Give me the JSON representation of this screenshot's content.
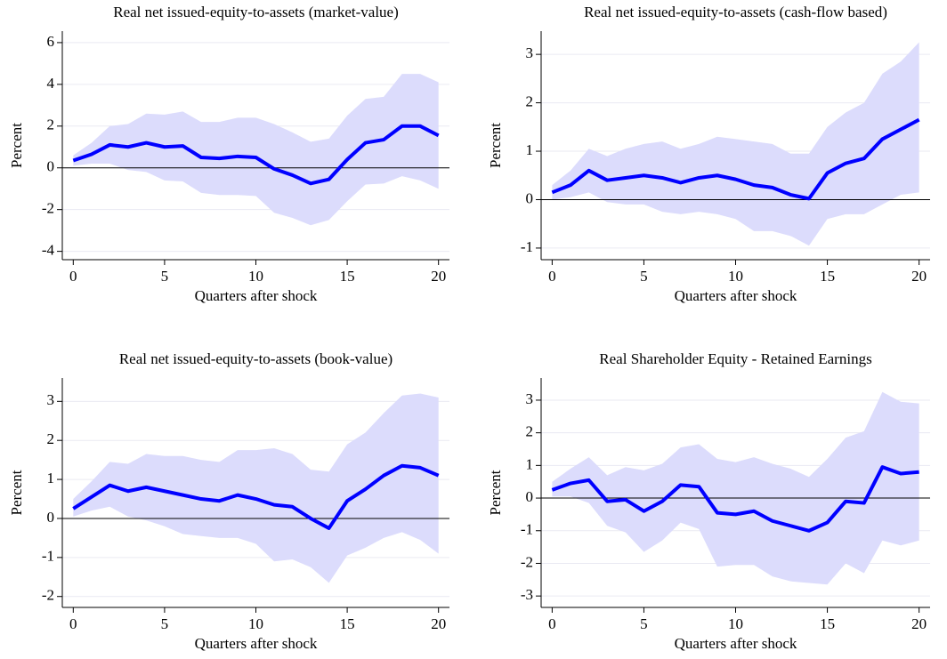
{
  "chart_data": [
    {
      "type": "line",
      "title": "Real net issued-equity-to-assets (market-value)",
      "xlabel": "Quarters after shock",
      "ylabel": "Percent",
      "x": [
        0,
        1,
        2,
        3,
        4,
        5,
        6,
        7,
        8,
        9,
        10,
        11,
        12,
        13,
        14,
        15,
        16,
        17,
        18,
        19,
        20
      ],
      "series": [
        {
          "color": "#0000ff",
          "values": [
            0.35,
            0.65,
            1.1,
            1.0,
            1.2,
            1.0,
            1.05,
            0.5,
            0.45,
            0.55,
            0.5,
            -0.05,
            -0.35,
            -0.75,
            -0.55,
            0.4,
            1.2,
            1.35,
            2.0,
            2.0,
            1.55
          ]
        }
      ],
      "band": {
        "color": "#dcdcfc",
        "upper": [
          0.6,
          1.2,
          2.0,
          2.1,
          2.6,
          2.55,
          2.7,
          2.2,
          2.2,
          2.4,
          2.4,
          2.1,
          1.7,
          1.25,
          1.4,
          2.5,
          3.3,
          3.4,
          4.5,
          4.5,
          4.1
        ],
        "lower": [
          0.1,
          0.2,
          0.2,
          -0.1,
          -0.2,
          -0.6,
          -0.65,
          -1.2,
          -1.3,
          -1.3,
          -1.35,
          -2.15,
          -2.4,
          -2.75,
          -2.5,
          -1.6,
          -0.8,
          -0.75,
          -0.4,
          -0.6,
          -1.0
        ]
      },
      "hline": 0,
      "xlim": [
        -0.6,
        20.6
      ],
      "xticks": [
        0,
        5,
        10,
        15,
        20
      ],
      "ylim": [
        -4.4,
        6.55
      ],
      "yticks": [
        -4,
        -2,
        0,
        2,
        4,
        6
      ],
      "grid": true
    },
    {
      "type": "line",
      "title": "Real net issued-equity-to-assets (cash-flow based)",
      "xlabel": "Quarters after shock",
      "ylabel": "Percent",
      "x": [
        0,
        1,
        2,
        3,
        4,
        5,
        6,
        7,
        8,
        9,
        10,
        11,
        12,
        13,
        14,
        15,
        16,
        17,
        18,
        19,
        20
      ],
      "series": [
        {
          "color": "#0000ff",
          "values": [
            0.15,
            0.3,
            0.6,
            0.4,
            0.45,
            0.5,
            0.45,
            0.35,
            0.45,
            0.5,
            0.42,
            0.3,
            0.25,
            0.1,
            0.02,
            0.55,
            0.75,
            0.85,
            1.25,
            1.45,
            1.65
          ]
        }
      ],
      "band": {
        "color": "#dcdcfc",
        "upper": [
          0.3,
          0.6,
          1.05,
          0.9,
          1.05,
          1.15,
          1.2,
          1.05,
          1.15,
          1.3,
          1.25,
          1.2,
          1.15,
          0.95,
          0.95,
          1.5,
          1.8,
          2.0,
          2.6,
          2.85,
          3.25
        ],
        "lower": [
          0.0,
          0.05,
          0.15,
          -0.05,
          -0.1,
          -0.1,
          -0.25,
          -0.3,
          -0.25,
          -0.3,
          -0.4,
          -0.65,
          -0.65,
          -0.75,
          -0.95,
          -0.4,
          -0.3,
          -0.3,
          -0.1,
          0.1,
          0.15
        ]
      },
      "hline": 0,
      "xlim": [
        -0.6,
        20.6
      ],
      "xticks": [
        0,
        5,
        10,
        15,
        20
      ],
      "ylim": [
        -1.24,
        3.48
      ],
      "yticks": [
        -1,
        0,
        1,
        2,
        3
      ],
      "grid": true
    },
    {
      "type": "line",
      "title": "Real net issued-equity-to-assets (book-value)",
      "xlabel": "Quarters after shock",
      "ylabel": "Percent",
      "x": [
        0,
        1,
        2,
        3,
        4,
        5,
        6,
        7,
        8,
        9,
        10,
        11,
        12,
        13,
        14,
        15,
        16,
        17,
        18,
        19,
        20
      ],
      "series": [
        {
          "color": "#0000ff",
          "values": [
            0.25,
            0.55,
            0.85,
            0.7,
            0.8,
            0.7,
            0.6,
            0.5,
            0.45,
            0.6,
            0.5,
            0.35,
            0.3,
            0.0,
            -0.25,
            0.45,
            0.75,
            1.1,
            1.35,
            1.3,
            1.1
          ]
        }
      ],
      "band": {
        "color": "#dcdcfc",
        "upper": [
          0.5,
          0.95,
          1.45,
          1.4,
          1.65,
          1.6,
          1.6,
          1.5,
          1.45,
          1.75,
          1.75,
          1.8,
          1.65,
          1.25,
          1.2,
          1.9,
          2.2,
          2.7,
          3.15,
          3.2,
          3.1
        ],
        "lower": [
          0.05,
          0.2,
          0.3,
          0.05,
          -0.05,
          -0.2,
          -0.4,
          -0.45,
          -0.5,
          -0.5,
          -0.65,
          -1.1,
          -1.05,
          -1.25,
          -1.65,
          -0.95,
          -0.75,
          -0.5,
          -0.35,
          -0.55,
          -0.9
        ]
      },
      "hline": 0,
      "xlim": [
        -0.6,
        20.6
      ],
      "xticks": [
        0,
        5,
        10,
        15,
        20
      ],
      "ylim": [
        -2.28,
        3.6
      ],
      "yticks": [
        -2,
        -1,
        0,
        1,
        2,
        3
      ],
      "grid": true
    },
    {
      "type": "line",
      "title": "Real Shareholder Equity - Retained Earnings",
      "xlabel": "Quarters after shock",
      "ylabel": "Percent",
      "x": [
        0,
        1,
        2,
        3,
        4,
        5,
        6,
        7,
        8,
        9,
        10,
        11,
        12,
        13,
        14,
        15,
        16,
        17,
        18,
        19,
        20
      ],
      "series": [
        {
          "color": "#0000ff",
          "values": [
            0.25,
            0.45,
            0.55,
            -0.1,
            -0.05,
            -0.4,
            -0.1,
            0.4,
            0.35,
            -0.45,
            -0.5,
            -0.4,
            -0.7,
            -0.85,
            -1.0,
            -0.75,
            -0.1,
            -0.15,
            0.95,
            0.75,
            0.8
          ]
        }
      ],
      "band": {
        "color": "#dcdcfc",
        "upper": [
          0.5,
          0.9,
          1.25,
          0.7,
          0.95,
          0.85,
          1.05,
          1.55,
          1.65,
          1.2,
          1.1,
          1.25,
          1.05,
          0.9,
          0.65,
          1.2,
          1.85,
          2.05,
          3.25,
          2.95,
          2.9
        ],
        "lower": [
          0.05,
          0.05,
          -0.15,
          -0.85,
          -1.05,
          -1.65,
          -1.3,
          -0.75,
          -0.95,
          -2.1,
          -2.05,
          -2.05,
          -2.4,
          -2.55,
          -2.6,
          -2.65,
          -2.0,
          -2.3,
          -1.3,
          -1.45,
          -1.3
        ]
      },
      "hline": 0,
      "xlim": [
        -0.6,
        20.6
      ],
      "xticks": [
        0,
        5,
        10,
        15,
        20
      ],
      "ylim": [
        -3.35,
        3.68
      ],
      "yticks": [
        -3,
        -2,
        -1,
        0,
        1,
        2,
        3
      ],
      "grid": true
    }
  ]
}
